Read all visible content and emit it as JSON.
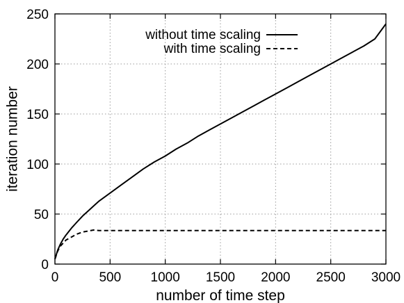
{
  "chart_data": {
    "type": "line",
    "title": "",
    "xlabel": "number of time step",
    "ylabel": "iteration number",
    "xlim": [
      0,
      3000
    ],
    "ylim": [
      0,
      250
    ],
    "xticks": [
      0,
      500,
      1000,
      1500,
      2000,
      2500,
      3000
    ],
    "yticks": [
      0,
      50,
      100,
      150,
      200,
      250
    ],
    "grid": true,
    "legend_position": "top-right",
    "series": [
      {
        "name": "without time scaling",
        "style": "solid",
        "color": "#000000",
        "x": [
          0,
          25,
          50,
          75,
          100,
          150,
          200,
          250,
          300,
          350,
          400,
          500,
          600,
          700,
          800,
          900,
          1000,
          1100,
          1200,
          1300,
          1400,
          1500,
          1600,
          1700,
          1800,
          1900,
          2000,
          2100,
          2200,
          2300,
          2400,
          2500,
          2600,
          2700,
          2800,
          2900,
          3000
        ],
        "y": [
          5,
          14,
          20,
          25,
          29,
          36,
          42,
          48,
          53,
          58,
          63,
          71,
          79,
          87,
          95,
          102,
          108,
          115,
          121,
          128,
          134,
          140,
          146,
          152,
          158,
          164,
          170,
          176,
          182,
          188,
          194,
          200,
          206,
          212,
          218,
          225,
          240
        ]
      },
      {
        "name": "with time scaling",
        "style": "dashed",
        "color": "#000000",
        "x": [
          0,
          25,
          50,
          75,
          100,
          150,
          200,
          250,
          300,
          350,
          400,
          500,
          700,
          1000,
          1500,
          2000,
          2500,
          3000
        ],
        "y": [
          5,
          13,
          18,
          21,
          24,
          27,
          30,
          32,
          33,
          34,
          33.5,
          33.5,
          33.5,
          33.5,
          33.5,
          33.5,
          33.5,
          33.5
        ]
      }
    ]
  }
}
